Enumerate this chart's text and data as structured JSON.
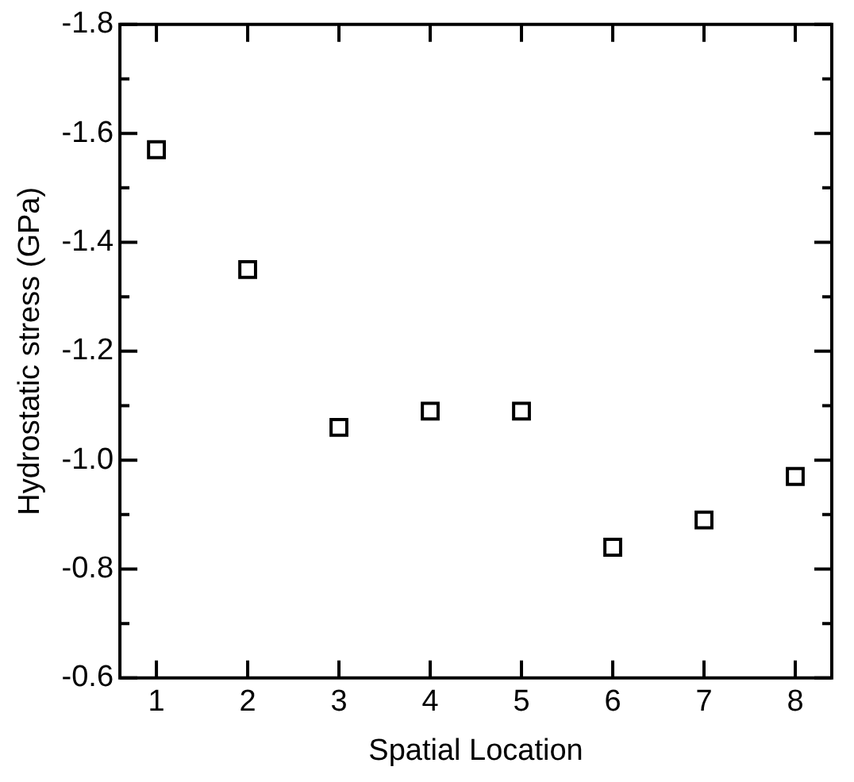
{
  "chart_data": {
    "type": "scatter",
    "xlabel": "Spatial Location",
    "ylabel": "Hydrostatic stress (GPa)",
    "x": [
      1,
      2,
      3,
      4,
      5,
      6,
      7,
      8
    ],
    "series": [
      {
        "color": "#000000",
        "values": [
          -1.57,
          -1.35,
          -1.06,
          -1.09,
          -1.09,
          -0.84,
          -0.89,
          -0.97
        ]
      }
    ],
    "marker": "square",
    "grid": false,
    "legend": false,
    "xlim": [
      0.6,
      8.4
    ],
    "xticks": [
      1,
      2,
      3,
      4,
      5,
      6,
      7,
      8
    ],
    "ylim": [
      -0.6,
      -1.8
    ],
    "yticks": [
      {
        "value": -1.8,
        "label": "-1.8"
      },
      {
        "value": -1.7,
        "label": null
      },
      {
        "value": -1.6,
        "label": "-1.6"
      },
      {
        "value": -1.5,
        "label": null
      },
      {
        "value": -1.4,
        "label": "-1.4"
      },
      {
        "value": -1.3,
        "label": null
      },
      {
        "value": -1.2,
        "label": "-1.2"
      },
      {
        "value": -1.1,
        "label": null
      },
      {
        "value": -1.0,
        "label": "-1.0"
      },
      {
        "value": -0.9,
        "label": null
      },
      {
        "value": -0.8,
        "label": "-0.8"
      },
      {
        "value": -0.7,
        "label": null
      },
      {
        "value": -0.6,
        "label": "-0.6"
      }
    ]
  }
}
